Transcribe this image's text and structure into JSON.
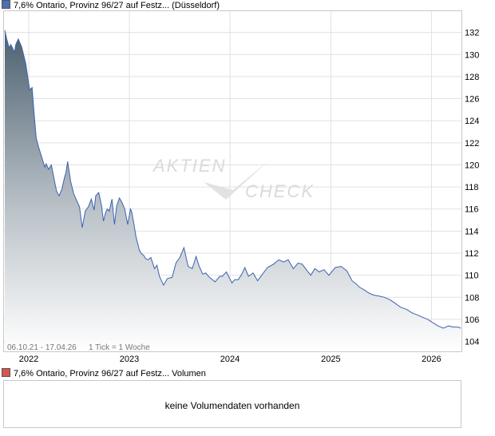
{
  "legend": {
    "price_title": "7,6% Ontario, Provinz 96/27 auf Festz... (Düsseldorf)",
    "price_color": "#4a6fb5",
    "volume_title": "7,6% Ontario, Provinz 96/27 auf Festz... Volumen",
    "volume_color": "#d9534f"
  },
  "watermark": {
    "line1": "AKTIEN",
    "line2": "CHECK"
  },
  "footer": {
    "range": "06.10.21 - 17.04.26",
    "tick_info": "1 Tick = 1 Woche"
  },
  "volume": {
    "message": "keine Volumendaten vorhanden"
  },
  "chart_data": {
    "type": "area",
    "x_tick_labels": [
      "2022",
      "2023",
      "2024",
      "2025",
      "2026"
    ],
    "y_ticks": [
      104,
      106,
      108,
      110,
      112,
      114,
      116,
      118,
      120,
      122,
      124,
      126,
      128,
      130,
      132
    ],
    "ylim": [
      103.1,
      134.0
    ],
    "xlim": [
      "2021-10-06",
      "2026-04-17"
    ],
    "grid": true,
    "series": [
      {
        "x": [
          "2021-10-06",
          "2021-10-13",
          "2021-10-22",
          "2021-10-28",
          "2021-11-10",
          "2021-11-15",
          "2021-11-24",
          "2021-12-06",
          "2021-12-21",
          "2022-01-04",
          "2022-01-13",
          "2022-01-21",
          "2022-01-28",
          "2022-02-07",
          "2022-02-28",
          "2022-03-05",
          "2022-03-14",
          "2022-03-24",
          "2022-04-07",
          "2022-04-12",
          "2022-04-21",
          "2022-05-01",
          "2022-05-10",
          "2022-05-16",
          "2022-05-22",
          "2022-06-02",
          "2022-06-13",
          "2022-06-23",
          "2022-07-04",
          "2022-07-14",
          "2022-07-25",
          "2022-08-05",
          "2022-08-16",
          "2022-08-26",
          "2022-09-01",
          "2022-09-12",
          "2022-09-22",
          "2022-09-29",
          "2022-10-07",
          "2022-10-13",
          "2022-10-20",
          "2022-10-30",
          "2022-11-08",
          "2022-11-16",
          "2022-11-26",
          "2022-12-05",
          "2022-12-15",
          "2022-12-26",
          "2023-01-05",
          "2023-01-10",
          "2023-01-17",
          "2023-01-25",
          "2023-02-06",
          "2023-02-12",
          "2023-02-22",
          "2023-03-01",
          "2023-03-10",
          "2023-03-20",
          "2023-04-02",
          "2023-04-11",
          "2023-04-20",
          "2023-05-05",
          "2023-05-19",
          "2023-06-05",
          "2023-06-19",
          "2023-07-03",
          "2023-07-18",
          "2023-08-02",
          "2023-08-17",
          "2023-08-31",
          "2023-09-10",
          "2023-09-24",
          "2023-10-05",
          "2023-10-19",
          "2023-11-08",
          "2023-11-25",
          "2023-12-04",
          "2023-12-19",
          "2024-01-08",
          "2024-01-18",
          "2024-01-31",
          "2024-02-13",
          "2024-02-24",
          "2024-03-08",
          "2024-03-25",
          "2024-04-10",
          "2024-04-28",
          "2024-05-16",
          "2024-06-07",
          "2024-06-26",
          "2024-07-14",
          "2024-07-30",
          "2024-08-18",
          "2024-09-04",
          "2024-09-19",
          "2024-10-04",
          "2024-10-20",
          "2024-11-04",
          "2024-11-20",
          "2024-12-07",
          "2024-12-25",
          "2025-01-17",
          "2025-02-07",
          "2025-02-28",
          "2025-03-19",
          "2025-04-03",
          "2025-04-16",
          "2025-04-30",
          "2025-05-18",
          "2025-06-05",
          "2025-06-26",
          "2025-07-14",
          "2025-08-02",
          "2025-08-20",
          "2025-09-11",
          "2025-10-03",
          "2025-10-21",
          "2025-11-11",
          "2025-11-29",
          "2025-12-18",
          "2026-01-06",
          "2026-01-25",
          "2026-02-13",
          "2026-03-04",
          "2026-03-23",
          "2026-04-08",
          "2026-04-17"
        ],
        "values": [
          132.2,
          131.4,
          130.6,
          130.9,
          130.2,
          130.9,
          131.4,
          130.7,
          129.2,
          126.8,
          127.0,
          124.5,
          122.4,
          121.5,
          119.8,
          120.1,
          119.6,
          120.0,
          118.2,
          117.6,
          117.2,
          117.8,
          118.8,
          119.3,
          120.3,
          118.5,
          117.4,
          116.8,
          116.2,
          114.3,
          115.8,
          116.2,
          116.9,
          115.9,
          117.2,
          117.5,
          116.3,
          114.9,
          115.7,
          116.0,
          115.8,
          116.9,
          114.6,
          116.3,
          117.0,
          116.6,
          116.0,
          114.6,
          116.0,
          115.7,
          114.7,
          113.5,
          112.3,
          112.0,
          111.8,
          111.5,
          111.4,
          111.6,
          110.6,
          110.9,
          109.9,
          109.1,
          109.7,
          109.8,
          111.1,
          111.6,
          112.5,
          110.8,
          110.6,
          111.7,
          110.9,
          110.1,
          110.2,
          109.8,
          109.4,
          109.9,
          109.9,
          110.3,
          109.3,
          109.6,
          109.6,
          110.1,
          110.7,
          109.9,
          110.2,
          109.5,
          110.1,
          110.7,
          111.0,
          111.4,
          111.2,
          111.4,
          110.6,
          111.1,
          111.0,
          110.5,
          110.0,
          110.6,
          110.3,
          110.5,
          110.0,
          110.7,
          110.8,
          110.4,
          109.5,
          109.2,
          108.9,
          108.7,
          108.4,
          108.2,
          108.1,
          108.0,
          107.8,
          107.5,
          107.1,
          106.9,
          106.6,
          106.4,
          106.2,
          106.0,
          105.7,
          105.4,
          105.2,
          105.4,
          105.3,
          105.3,
          105.2
        ]
      }
    ]
  }
}
